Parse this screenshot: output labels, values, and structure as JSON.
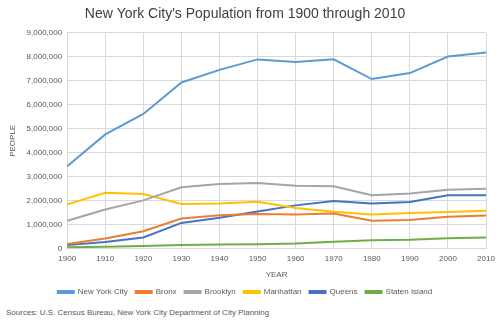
{
  "chart_data": {
    "type": "line",
    "title": "New York City's Population from 1900 through 2010",
    "x_label": "YEAR",
    "y_label": "PEOPLE",
    "annotations": [
      "Sources: U.S. Census Bureau, New York City Department of City Planning"
    ],
    "categories": [
      "1900",
      "1910",
      "1920",
      "1930",
      "1940",
      "1950",
      "1960",
      "1970",
      "1980",
      "1990",
      "2000",
      "2010"
    ],
    "series": [
      {
        "name": "New York City",
        "color": "#5b9bd5",
        "values": [
          3437202,
          4766883,
          5620048,
          6930446,
          7454995,
          7891957,
          7781984,
          7894862,
          7071639,
          7322564,
          8008278,
          8175133
        ]
      },
      {
        "name": "Bronx",
        "color": "#ed7d31",
        "values": [
          200507,
          430980,
          732016,
          1265258,
          1394711,
          1451277,
          1424815,
          1471701,
          1168972,
          1203789,
          1332650,
          1385108
        ]
      },
      {
        "name": "Brooklyn",
        "color": "#a5a5a5",
        "values": [
          1166582,
          1634351,
          2018356,
          2560401,
          2698285,
          2738175,
          2627319,
          2602012,
          2230936,
          2300664,
          2465326,
          2504700
        ]
      },
      {
        "name": "Manhattan",
        "color": "#ffc000",
        "values": [
          1850093,
          2331542,
          2284103,
          1867312,
          1889924,
          1960101,
          1698281,
          1539233,
          1428285,
          1487536,
          1537195,
          1585873
        ]
      },
      {
        "name": "Queens",
        "color": "#4472c4",
        "values": [
          152999,
          284041,
          469042,
          1079129,
          1297634,
          1550849,
          1809578,
          1986473,
          1891325,
          1951598,
          2229379,
          2230722
        ]
      },
      {
        "name": "Staten Island",
        "color": "#70ad47",
        "values": [
          67021,
          85969,
          116531,
          158346,
          174441,
          191555,
          221991,
          295443,
          352121,
          378977,
          443728,
          468730
        ]
      }
    ],
    "ylim": [
      0,
      9000000
    ],
    "yticks": [
      0,
      {
        "value": 1000000,
        "label": "1,000,000"
      },
      {
        "value": 2000000,
        "label": "2,000,000"
      },
      {
        "value": 3000000,
        "label": "3,000,000"
      },
      {
        "value": 4000000,
        "label": "4,000,000"
      },
      {
        "value": 5000000,
        "label": "5,000,000"
      },
      {
        "value": 6000000,
        "label": "6,000,000"
      },
      {
        "value": 7000000,
        "label": "7,000,000"
      },
      {
        "value": 8000000,
        "label": "8,000,000"
      },
      {
        "value": 9000000,
        "label": "9,000,000"
      }
    ],
    "grid": true,
    "legend": "bottom"
  }
}
